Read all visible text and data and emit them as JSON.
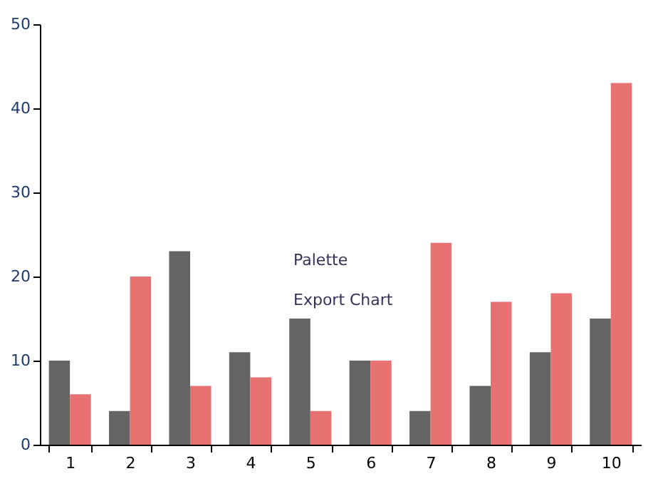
{
  "chart_data": {
    "type": "bar",
    "categories": [
      "1",
      "2",
      "3",
      "4",
      "5",
      "6",
      "7",
      "8",
      "9",
      "10"
    ],
    "series": [
      {
        "color": "#646464",
        "values": [
          10,
          4,
          23,
          11,
          15,
          10,
          4,
          7,
          11,
          15
        ]
      },
      {
        "color": "#e87171",
        "values": [
          6,
          20,
          7,
          8,
          4,
          10,
          24,
          17,
          18,
          43
        ]
      }
    ],
    "ylim": [
      0,
      50
    ],
    "yticks": [
      0,
      10,
      20,
      30,
      40,
      50
    ],
    "grid": false,
    "annotations": [
      "Palette",
      "Export Chart"
    ]
  }
}
